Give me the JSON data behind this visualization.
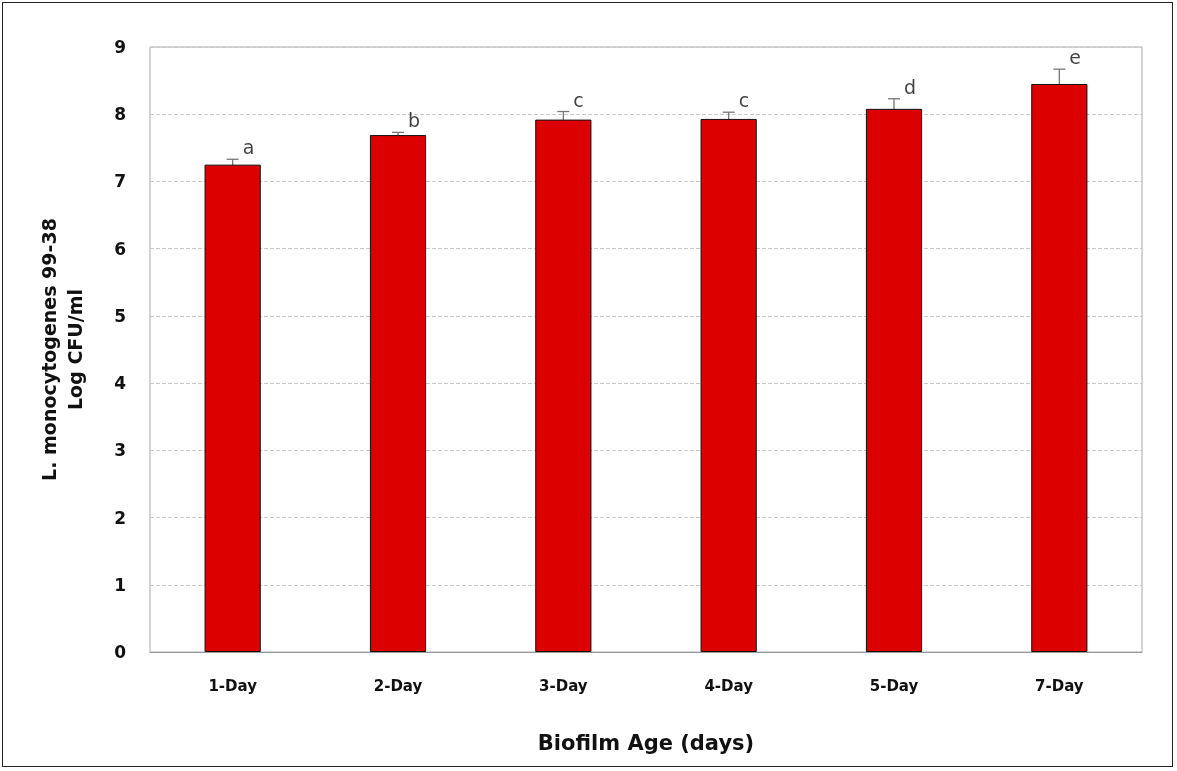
{
  "chart_data": {
    "type": "bar",
    "xlabel": "Biofilm Age (days)",
    "ylabel": "L. monocytogenes 99-38\nLog CFU/ml",
    "categories": [
      "1-Day",
      "2-Day",
      "3-Day",
      "4-Day",
      "5-Day",
      "7-Day"
    ],
    "values": [
      7.25,
      7.69,
      7.92,
      7.93,
      8.08,
      8.45
    ],
    "errors": [
      0.08,
      0.04,
      0.12,
      0.1,
      0.15,
      0.22
    ],
    "color": "#dd0000",
    "ylim": [
      0,
      9
    ],
    "yticks": [
      0,
      1,
      2,
      3,
      4,
      5,
      6,
      7,
      8,
      9
    ],
    "grid": "y",
    "annotations": [
      {
        "text": "a",
        "x": "1-Day",
        "y": 7.33
      },
      {
        "text": "b",
        "x": "2-Day",
        "y": 7.73
      },
      {
        "text": "c",
        "x": "3-Day",
        "y": 8.04
      },
      {
        "text": "c",
        "x": "4-Day",
        "y": 8.03
      },
      {
        "text": "d",
        "x": "5-Day",
        "y": 8.23
      },
      {
        "text": "e",
        "x": "7-Day",
        "y": 8.67
      }
    ]
  }
}
